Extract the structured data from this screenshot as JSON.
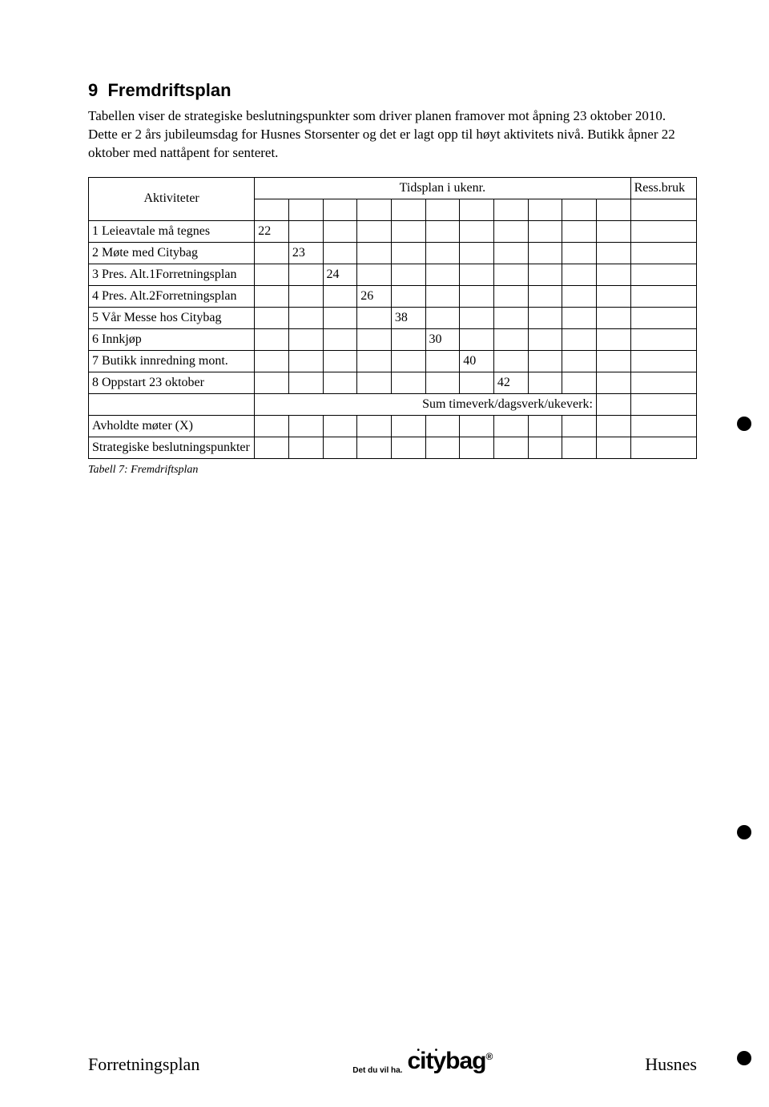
{
  "section": {
    "number": "9",
    "title": "Fremdriftsplan",
    "intro1": "Tabellen viser de strategiske beslutningspunkter som driver planen framover mot åpning 23 oktober 2010. Dette er 2 års jubileumsdag for Husnes Storsenter og det er lagt opp til høyt aktivitets nivå. Butikk åpner 22 oktober med nattåpent for senteret."
  },
  "table": {
    "header_aktiviteter": "Aktiviteter",
    "header_tidsplan": "Tidsplan i ukenr.",
    "header_ress": "Ress.bruk",
    "rows": [
      {
        "label": "1 Leieavtale må tegnes",
        "col": 0,
        "val": "22"
      },
      {
        "label": "2 Møte med Citybag",
        "col": 1,
        "val": "23"
      },
      {
        "label": "3 Pres. Alt.1Forretningsplan",
        "col": 2,
        "val": "24"
      },
      {
        "label": "4 Pres. Alt.2Forretningsplan",
        "col": 3,
        "val": "26"
      },
      {
        "label": "5 Vår Messe hos Citybag",
        "col": 4,
        "val": "38"
      },
      {
        "label": "6 Innkjøp",
        "col": 5,
        "val": "30"
      },
      {
        "label": "7 Butikk innredning mont.",
        "col": 6,
        "val": "40"
      },
      {
        "label": "8 Oppstart 23 oktober",
        "col": 7,
        "val": "42"
      }
    ],
    "sum_label": "Sum timeverk/dagsverk/ukeverk:",
    "row_avholdte": "Avholdte møter (X)",
    "row_strategiske": "Strategiske beslutningspunkter",
    "caption": "Tabell 7: Fremdriftsplan",
    "num_week_cols": 11
  },
  "footer": {
    "left": "Forretningsplan",
    "logo_tag": "Det du vil ha.",
    "logo_main": "citybag",
    "logo_reg": "®",
    "right": "Husnes"
  }
}
